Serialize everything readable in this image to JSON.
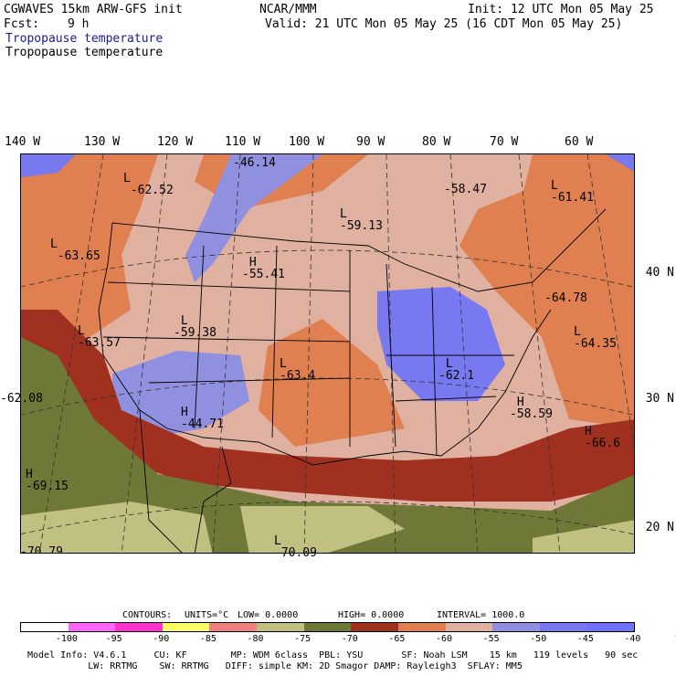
{
  "header": {
    "model": "CGWAVES 15km ARW-GFS init",
    "forecast_label": "Fcst:",
    "forecast_hours": "9 h",
    "org": "NCAR/MMM",
    "init": "Init: 12 UTC Mon 05 May 25",
    "valid": "Valid: 21 UTC Mon 05 May 25 (16 CDT Mon 05 May 25)",
    "field_blue": "Tropopause temperature",
    "field_black": "Tropopause temperature"
  },
  "axes": {
    "longitudes": [
      "140 W",
      "130 W",
      "120 W",
      "110 W",
      "100 W",
      "90 W",
      "80 W",
      "70 W",
      "60 W"
    ],
    "latitudes": [
      "40 N",
      "30 N",
      "20 N"
    ]
  },
  "map_labels": [
    {
      "type": "L",
      "value": "-62.52"
    },
    {
      "type": "",
      "value": "-46.14"
    },
    {
      "type": "",
      "value": "-58.47"
    },
    {
      "type": "L",
      "value": "-61.41"
    },
    {
      "type": "L",
      "value": "-59.13"
    },
    {
      "type": "L",
      "value": "-63.65"
    },
    {
      "type": "H",
      "value": "-55.41"
    },
    {
      "type": "",
      "value": "-64.78"
    },
    {
      "type": "L",
      "value": "-63.57"
    },
    {
      "type": "L",
      "value": "-59.38"
    },
    {
      "type": "L",
      "value": "-64.35"
    },
    {
      "type": "L",
      "value": "-63.4"
    },
    {
      "type": "L",
      "value": "-62.1"
    },
    {
      "type": "",
      "value": "-62.08"
    },
    {
      "type": "H",
      "value": "-44.71"
    },
    {
      "type": "H",
      "value": "-58.59"
    },
    {
      "type": "H",
      "value": "-66.6"
    },
    {
      "type": "H",
      "value": "-69.15"
    },
    {
      "type": "L",
      "value": "-70.09"
    },
    {
      "type": "",
      "value": "-70.79"
    }
  ],
  "contours": {
    "title": "CONTOURS:",
    "units": "UNITS=°C",
    "low": "LOW= 0.0000",
    "high": "HIGH= 0.0000",
    "interval": "INTERVAL= 1000.0"
  },
  "colorbar": {
    "ticks": [
      "-100",
      "-95",
      "-90",
      "-85",
      "-80",
      "-75",
      "-70",
      "-65",
      "-60",
      "-55",
      "-50",
      "-45",
      "-40",
      "°C"
    ],
    "colors": [
      "#ffffff",
      "#ff66ff",
      "#ff33cc",
      "#ffff66",
      "#f08080",
      "#c0c080",
      "#707838",
      "#a03020",
      "#e08050",
      "#e0b0a0",
      "#9090e0",
      "#7878f0",
      "#7070f8"
    ]
  },
  "footer": {
    "line1": "Model Info: V4.6.1     CU: KF        MP: WDM 6class  PBL: YSU       SF: Noah LSM    15 km   119 levels   90 sec",
    "line2": "           LW: RRTMG    SW: RRTMG   DIFF: simple KM: 2D Smagor DAMP: Rayleigh3  SFLAY: MM5"
  }
}
